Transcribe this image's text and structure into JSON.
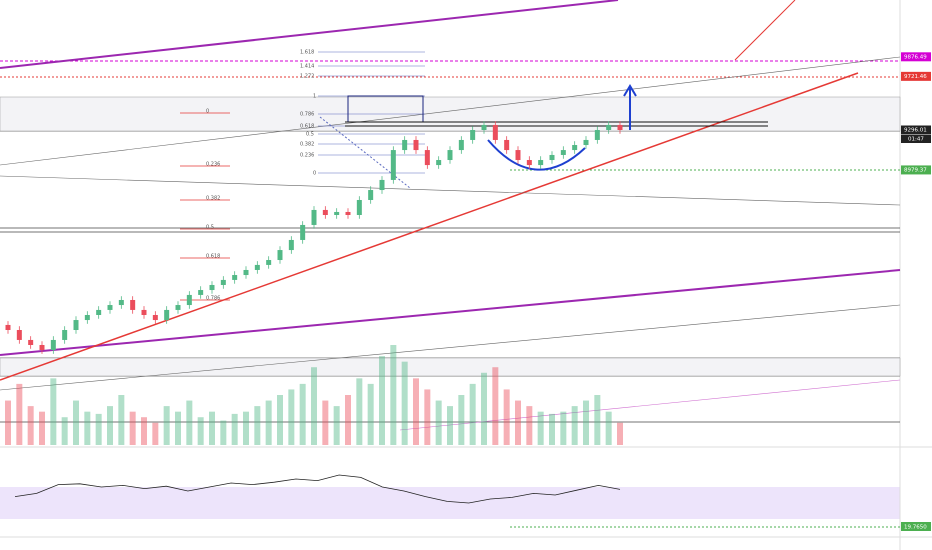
{
  "chart": {
    "type": "candlestick",
    "ylim": [
      6798,
      10327
    ],
    "open": [
      7750,
      7710,
      7631,
      7591,
      7551,
      7631,
      7710,
      7789,
      7829,
      7869,
      7908,
      7948,
      7869,
      7829,
      7789,
      7869,
      7908,
      7988,
      8027,
      8067,
      8107,
      8146,
      8186,
      8226,
      8265,
      8344,
      8424,
      8543,
      8662,
      8622,
      8646,
      8622,
      8741,
      8820,
      8900,
      9137,
      9217,
      9137,
      9018,
      9058,
      9137,
      9217,
      9296,
      9336,
      9217,
      9137,
      9058,
      9018,
      9058,
      9098,
      9137,
      9177,
      9217,
      9296,
      9336
    ],
    "high": [
      7780,
      7740,
      7661,
      7621,
      7661,
      7740,
      7819,
      7859,
      7899,
      7938,
      7978,
      7978,
      7899,
      7859,
      7899,
      7938,
      8018,
      8057,
      8097,
      8137,
      8176,
      8216,
      8256,
      8295,
      8374,
      8454,
      8573,
      8692,
      8692,
      8676,
      8676,
      8771,
      8850,
      8930,
      9167,
      9247,
      9247,
      9167,
      9088,
      9167,
      9247,
      9326,
      9366,
      9366,
      9247,
      9167,
      9088,
      9088,
      9128,
      9167,
      9207,
      9247,
      9326,
      9366,
      9366
    ],
    "low": [
      7680,
      7601,
      7561,
      7521,
      7521,
      7601,
      7680,
      7759,
      7799,
      7839,
      7878,
      7839,
      7799,
      7759,
      7759,
      7839,
      7878,
      7958,
      7997,
      8037,
      8077,
      8116,
      8156,
      8196,
      8235,
      8314,
      8394,
      8513,
      8592,
      8592,
      8592,
      8592,
      8711,
      8790,
      8870,
      9107,
      9107,
      8988,
      8988,
      9028,
      9107,
      9187,
      9266,
      9187,
      9107,
      9028,
      8988,
      8988,
      9028,
      9068,
      9107,
      9147,
      9187,
      9266,
      9266
    ],
    "close": [
      7710,
      7631,
      7591,
      7551,
      7631,
      7710,
      7789,
      7829,
      7869,
      7908,
      7948,
      7869,
      7829,
      7789,
      7869,
      7908,
      7988,
      8027,
      8067,
      8107,
      8146,
      8186,
      8226,
      8265,
      8344,
      8424,
      8543,
      8662,
      8622,
      8646,
      8622,
      8741,
      8820,
      8900,
      9137,
      9217,
      9137,
      9018,
      9058,
      9137,
      9217,
      9296,
      9336,
      9217,
      9137,
      9058,
      9018,
      9058,
      9098,
      9137,
      9177,
      9217,
      9296,
      9336,
      9296
    ],
    "volume": [
      40,
      55,
      35,
      30,
      60,
      25,
      40,
      30,
      28,
      35,
      45,
      30,
      25,
      20,
      35,
      30,
      40,
      25,
      30,
      22,
      28,
      30,
      35,
      40,
      45,
      50,
      55,
      70,
      40,
      35,
      45,
      60,
      55,
      80,
      90,
      75,
      60,
      50,
      40,
      35,
      45,
      55,
      65,
      70,
      50,
      40,
      35,
      30,
      28,
      30,
      35,
      40,
      45,
      30,
      20
    ],
    "rsi_lim": [
      0,
      100
    ],
    "rsi": [
      48,
      52,
      63,
      64,
      60,
      62,
      58,
      61,
      55,
      60,
      65,
      63,
      66,
      70,
      68,
      75,
      72,
      60,
      55,
      48,
      42,
      40,
      45,
      47,
      52,
      50,
      56,
      62,
      57
    ],
    "price_tags": [
      9876.49,
      9721.46,
      9296.01,
      8979.37
    ],
    "countdown": "01:47",
    "rsi_tag": "19.7650",
    "fib_blue": [
      "1.618",
      "1.414",
      "1.272",
      "1",
      "0.786",
      "0.618",
      "0.5",
      "0.382",
      "0.236",
      "0"
    ],
    "fib_red": [
      "0",
      "0.236",
      "0.382",
      "0.5",
      "0.618",
      "0.786"
    ]
  }
}
